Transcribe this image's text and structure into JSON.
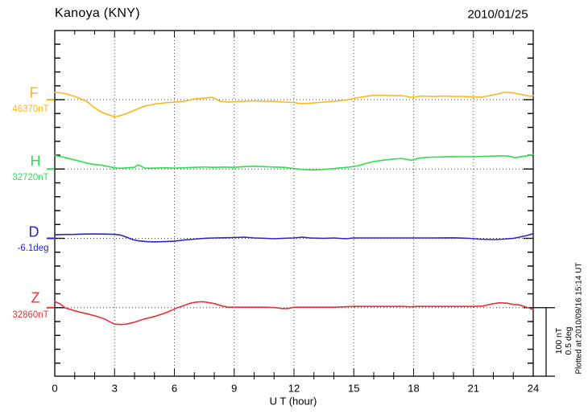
{
  "header": {
    "title": "Kanoya (KNY)",
    "date": "2010/01/25"
  },
  "axis": {
    "xlabel": "U T (hour)",
    "xticks": [
      "0",
      "3",
      "6",
      "9",
      "12",
      "15",
      "18",
      "21",
      "24"
    ]
  },
  "components": [
    {
      "key": "F",
      "label": "F",
      "value": "46370nT",
      "color": "#FFB31A"
    },
    {
      "key": "H",
      "label": "H",
      "value": "32720nT",
      "color": "#33DD55"
    },
    {
      "key": "D",
      "label": "D",
      "value": "-6.1deg",
      "color": "#2626CC"
    },
    {
      "key": "Z",
      "label": "Z",
      "value": "32860nT",
      "color": "#E63333"
    }
  ],
  "scale_bar": {
    "label_nT": "100 nT",
    "label_deg": "0.5 deg"
  },
  "footnote": "Plotted at 2010/09/16 15:14 UT",
  "colors": {
    "frame": "#000000",
    "grid": "#444444"
  },
  "chart_data": {
    "type": "line",
    "title": "Kanoya (KNY)",
    "date": "2010/01/25",
    "xlabel": "U T (hour)",
    "x_range": [
      0,
      24
    ],
    "x_major_ticks": [
      0,
      3,
      6,
      9,
      12,
      15,
      18,
      21,
      24
    ],
    "grid": "dotted vertical every 3h, dotted horizontal baseline per trace",
    "scale": {
      "nT_per_division": 100,
      "deg_per_division": 0.5
    },
    "series": [
      {
        "name": "F",
        "baseline_value": "46370nT",
        "unit": "nT",
        "color": "#FFB31A",
        "points": [
          [
            0,
            10.6
          ],
          [
            0.3,
            10
          ],
          [
            0.6,
            8.2
          ],
          [
            1,
            4.7
          ],
          [
            1.3,
            1.2
          ],
          [
            1.6,
            -2.4
          ],
          [
            2,
            -11.8
          ],
          [
            2.3,
            -17.6
          ],
          [
            2.6,
            -21.2
          ],
          [
            2.9,
            -24
          ],
          [
            3.1,
            -24.7
          ],
          [
            3.4,
            -22.4
          ],
          [
            3.7,
            -19
          ],
          [
            4,
            -15.3
          ],
          [
            4.5,
            -9.4
          ],
          [
            5,
            -6.5
          ],
          [
            5.5,
            -4.7
          ],
          [
            6,
            -3.5
          ],
          [
            6.5,
            -2.4
          ],
          [
            7,
            1.2
          ],
          [
            7.5,
            2.4
          ],
          [
            7.9,
            3.5
          ],
          [
            8.3,
            -2.4
          ],
          [
            8.7,
            -3.5
          ],
          [
            9,
            -2.9
          ],
          [
            9.5,
            -2.4
          ],
          [
            10,
            -1.8
          ],
          [
            10.5,
            -2.4
          ],
          [
            11,
            -2.4
          ],
          [
            11.5,
            -3.5
          ],
          [
            12,
            -4.1
          ],
          [
            12.4,
            -5.9
          ],
          [
            12.7,
            -5.3
          ],
          [
            13,
            -4.7
          ],
          [
            13.5,
            -3.5
          ],
          [
            14,
            -2.4
          ],
          [
            14.4,
            -1.2
          ],
          [
            14.8,
            0.6
          ],
          [
            15.2,
            2.9
          ],
          [
            15.6,
            4.7
          ],
          [
            16,
            6.5
          ],
          [
            16.5,
            6.5
          ],
          [
            17,
            5.9
          ],
          [
            17.5,
            5.9
          ],
          [
            17.8,
            3.5
          ],
          [
            18.1,
            4.1
          ],
          [
            18.4,
            5.3
          ],
          [
            19,
            4.7
          ],
          [
            19.5,
            5.3
          ],
          [
            20,
            4.7
          ],
          [
            20.5,
            4.7
          ],
          [
            21,
            4.1
          ],
          [
            21.4,
            3.5
          ],
          [
            21.8,
            5.9
          ],
          [
            22.2,
            8.2
          ],
          [
            22.5,
            10.6
          ],
          [
            22.8,
            10.6
          ],
          [
            23.1,
            9.4
          ],
          [
            23.4,
            7.6
          ],
          [
            23.7,
            5.9
          ],
          [
            23.85,
            4.7
          ],
          [
            24,
            5.9
          ]
        ]
      },
      {
        "name": "H",
        "baseline_value": "32720nT",
        "unit": "nT",
        "color": "#33DD55",
        "points": [
          [
            0,
            20
          ],
          [
            0.4,
            17.6
          ],
          [
            0.8,
            14.7
          ],
          [
            1.2,
            11.8
          ],
          [
            1.6,
            8.8
          ],
          [
            2,
            6.5
          ],
          [
            2.4,
            5.3
          ],
          [
            2.8,
            2.9
          ],
          [
            3.1,
            1.4
          ],
          [
            3.4,
            1.2
          ],
          [
            3.7,
            2
          ],
          [
            4,
            2.4
          ],
          [
            4.15,
            5.9
          ],
          [
            4.3,
            4.7
          ],
          [
            4.5,
            1.2
          ],
          [
            5,
            1.2
          ],
          [
            5.5,
            1.8
          ],
          [
            6,
            1.2
          ],
          [
            6.5,
            1.8
          ],
          [
            7,
            2.4
          ],
          [
            7.5,
            2.9
          ],
          [
            8,
            2.4
          ],
          [
            8.5,
            2.9
          ],
          [
            9,
            2.4
          ],
          [
            9.5,
            3.5
          ],
          [
            10,
            4.1
          ],
          [
            10.5,
            3.5
          ],
          [
            11,
            2.9
          ],
          [
            11.5,
            2.4
          ],
          [
            12,
            0.6
          ],
          [
            12.4,
            -0.6
          ],
          [
            12.8,
            -1.2
          ],
          [
            13.2,
            -1.2
          ],
          [
            13.6,
            -0.3
          ],
          [
            14,
            0.6
          ],
          [
            14.4,
            1.8
          ],
          [
            14.8,
            2.9
          ],
          [
            15.2,
            4.7
          ],
          [
            15.6,
            8.2
          ],
          [
            16,
            11
          ],
          [
            16.5,
            13
          ],
          [
            17,
            14.7
          ],
          [
            17.4,
            15.3
          ],
          [
            17.9,
            12.9
          ],
          [
            18.3,
            15.9
          ],
          [
            18.7,
            17.1
          ],
          [
            19.3,
            17.6
          ],
          [
            19.9,
            18.2
          ],
          [
            20.5,
            17.9
          ],
          [
            21.2,
            18.2
          ],
          [
            21.8,
            18.8
          ],
          [
            22.4,
            19.4
          ],
          [
            22.8,
            18.8
          ],
          [
            23.1,
            16.5
          ],
          [
            23.4,
            18.2
          ],
          [
            23.7,
            19.4
          ],
          [
            24,
            21.2
          ]
        ]
      },
      {
        "name": "D",
        "baseline_value": "-6.1deg",
        "unit": "deg",
        "color": "#2626CC",
        "points": [
          [
            0,
            0.026
          ],
          [
            0.5,
            0.028
          ],
          [
            1,
            0.029
          ],
          [
            1.5,
            0.031
          ],
          [
            2,
            0.032
          ],
          [
            2.5,
            0.031
          ],
          [
            3,
            0.029
          ],
          [
            3.3,
            0.024
          ],
          [
            3.6,
            0.009
          ],
          [
            3.9,
            -0.009
          ],
          [
            4.2,
            -0.018
          ],
          [
            4.6,
            -0.024
          ],
          [
            5,
            -0.026
          ],
          [
            5.5,
            -0.024
          ],
          [
            6,
            -0.021
          ],
          [
            6.5,
            -0.012
          ],
          [
            7,
            -0.006
          ],
          [
            7.5,
            0
          ],
          [
            8,
            0.003
          ],
          [
            8.5,
            0.004
          ],
          [
            9,
            0.006
          ],
          [
            9.5,
            0.009
          ],
          [
            10,
            0.003
          ],
          [
            10.6,
            0
          ],
          [
            11,
            -0.003
          ],
          [
            11.4,
            0
          ],
          [
            12,
            0.003
          ],
          [
            12.4,
            0.009
          ],
          [
            12.8,
            0.003
          ],
          [
            13.5,
            0
          ],
          [
            14,
            0.003
          ],
          [
            14.6,
            -0.003
          ],
          [
            15,
            0.003
          ],
          [
            16,
            0.003
          ],
          [
            17,
            0.003
          ],
          [
            18,
            0.003
          ],
          [
            19,
            0.003
          ],
          [
            20,
            0.004
          ],
          [
            20.8,
            0
          ],
          [
            21.3,
            -0.006
          ],
          [
            22,
            -0.009
          ],
          [
            22.5,
            -0.006
          ],
          [
            23,
            0
          ],
          [
            23.3,
            0.009
          ],
          [
            23.7,
            0.021
          ],
          [
            24,
            0.035
          ]
        ]
      },
      {
        "name": "Z",
        "baseline_value": "32860nT",
        "unit": "nT",
        "color": "#E63333",
        "points": [
          [
            0,
            8.8
          ],
          [
            0.25,
            5.9
          ],
          [
            0.5,
            0
          ],
          [
            1,
            -4.7
          ],
          [
            1.5,
            -8.2
          ],
          [
            2,
            -11.8
          ],
          [
            2.5,
            -16.5
          ],
          [
            2.8,
            -21.2
          ],
          [
            3,
            -24.1
          ],
          [
            3.3,
            -24.7
          ],
          [
            3.6,
            -24.1
          ],
          [
            4,
            -21.2
          ],
          [
            4.5,
            -16.5
          ],
          [
            5,
            -12.9
          ],
          [
            5.5,
            -8.2
          ],
          [
            5.8,
            -4.7
          ],
          [
            6.1,
            -0.6
          ],
          [
            6.4,
            2.4
          ],
          [
            6.8,
            6.5
          ],
          [
            7.1,
            8.2
          ],
          [
            7.4,
            8.8
          ],
          [
            7.7,
            7.6
          ],
          [
            8,
            5.9
          ],
          [
            8.4,
            2.4
          ],
          [
            8.7,
            0.6
          ],
          [
            9,
            0.6
          ],
          [
            9.5,
            0.6
          ],
          [
            10,
            0.6
          ],
          [
            10.5,
            0.6
          ],
          [
            11,
            0.3
          ],
          [
            11.4,
            -1.2
          ],
          [
            11.7,
            -1.2
          ],
          [
            12,
            0.6
          ],
          [
            12.5,
            0.6
          ],
          [
            13,
            0.6
          ],
          [
            13.5,
            0.6
          ],
          [
            14,
            0.6
          ],
          [
            14.5,
            1.2
          ],
          [
            15,
            1.8
          ],
          [
            15.5,
            1.8
          ],
          [
            16,
            1.8
          ],
          [
            16.5,
            1.8
          ],
          [
            17,
            1.8
          ],
          [
            17.5,
            1.8
          ],
          [
            17.8,
            1.2
          ],
          [
            18.1,
            1.8
          ],
          [
            18.5,
            1.8
          ],
          [
            19,
            1.8
          ],
          [
            19.5,
            1.8
          ],
          [
            20,
            1.8
          ],
          [
            20.5,
            1.8
          ],
          [
            21,
            1.8
          ],
          [
            21.5,
            2.4
          ],
          [
            21.9,
            5.3
          ],
          [
            22.3,
            7.1
          ],
          [
            22.7,
            6.5
          ],
          [
            23,
            4.7
          ],
          [
            23.3,
            4.1
          ],
          [
            23.6,
            1.2
          ],
          [
            23.8,
            -0.6
          ],
          [
            24,
            -2.9
          ]
        ]
      }
    ]
  }
}
